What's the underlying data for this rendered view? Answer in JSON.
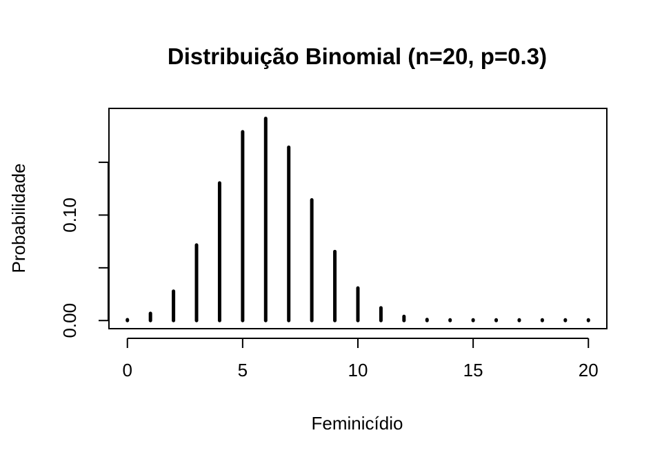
{
  "chart_data": {
    "type": "bar",
    "title": "Distribuição Binomial (n=20, p=0.3)",
    "xlabel": "Feminicídio",
    "ylabel": "Probabilidade",
    "x": [
      0,
      1,
      2,
      3,
      4,
      5,
      6,
      7,
      8,
      9,
      10,
      11,
      12,
      13,
      14,
      15,
      16,
      17,
      18,
      19,
      20
    ],
    "values": [
      0.0008,
      0.0068,
      0.0278,
      0.0716,
      0.1304,
      0.1789,
      0.1916,
      0.1643,
      0.1144,
      0.0654,
      0.0308,
      0.012,
      0.0039,
      0.001,
      0.0002,
      0.0,
      0.0,
      0.0,
      0.0,
      0.0,
      0.0
    ],
    "xlim": [
      -0.8,
      20.8
    ],
    "ylim": [
      -0.0077,
      0.2011
    ],
    "x_ticks": [
      0,
      5,
      10,
      15,
      20
    ],
    "x_tick_labels": [
      "0",
      "5",
      "10",
      "15",
      "20"
    ],
    "y_ticks": [
      0.0,
      0.05,
      0.1,
      0.15
    ],
    "y_tick_labels": [
      "0.00",
      "",
      "0.10",
      ""
    ],
    "grid": false,
    "bar_color": "#000000"
  }
}
